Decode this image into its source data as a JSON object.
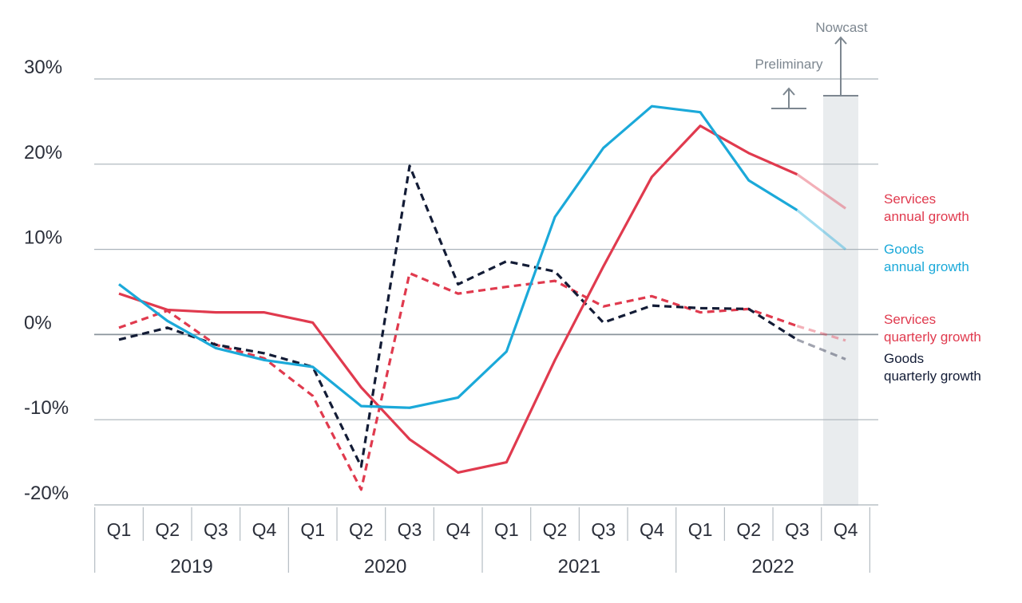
{
  "chart_data": {
    "type": "line",
    "title": "",
    "xlabel": "",
    "ylabel": "",
    "ylim": [
      -20,
      30
    ],
    "yticks": [
      {
        "value": 30,
        "label": "30%"
      },
      {
        "value": 20,
        "label": "20%"
      },
      {
        "value": 10,
        "label": "10%"
      },
      {
        "value": 0,
        "label": "0%"
      },
      {
        "value": -10,
        "label": "-10%"
      },
      {
        "value": -20,
        "label": "-20%"
      }
    ],
    "quarters": [
      "Q1",
      "Q2",
      "Q3",
      "Q4",
      "Q1",
      "Q2",
      "Q3",
      "Q4",
      "Q1",
      "Q2",
      "Q3",
      "Q4",
      "Q1",
      "Q2",
      "Q3",
      "Q4"
    ],
    "years": [
      "2019",
      "2020",
      "2021",
      "2022"
    ],
    "series": [
      {
        "name": "Services annual growth",
        "legend": [
          "Services",
          "annual growth"
        ],
        "color": "#e03a4e",
        "style": "solid",
        "values": [
          4.8,
          2.9,
          2.6,
          2.6,
          1.4,
          -6.2,
          -12.3,
          -16.2,
          -15.0,
          -3.0,
          8.0,
          18.5,
          24.5,
          21.3,
          18.8,
          14.8
        ]
      },
      {
        "name": "Goods annual growth",
        "legend": [
          "Goods",
          "annual growth"
        ],
        "color": "#1ba9d9",
        "style": "solid",
        "values": [
          5.9,
          1.6,
          -1.6,
          -3.0,
          -3.8,
          -8.4,
          -8.6,
          -7.4,
          -2.0,
          13.8,
          21.9,
          26.8,
          26.1,
          18.1,
          14.6,
          10.0
        ]
      },
      {
        "name": "Services quarterly growth",
        "legend": [
          "Services",
          "quarterly growth"
        ],
        "color": "#e03a4e",
        "style": "dashed",
        "values": [
          0.8,
          2.8,
          -1.2,
          -2.8,
          -7.2,
          -18.2,
          7.2,
          4.8,
          5.6,
          6.3,
          3.3,
          4.5,
          2.6,
          3.0,
          1.0,
          -0.7
        ]
      },
      {
        "name": "Goods quarterly growth",
        "legend": [
          "Goods",
          "quarterly growth"
        ],
        "color": "#131c36",
        "style": "dashed",
        "values": [
          -0.6,
          0.8,
          -1.2,
          -2.2,
          -3.8,
          -15.5,
          19.8,
          5.9,
          8.6,
          7.4,
          1.4,
          3.4,
          3.1,
          3.0,
          -0.6,
          -2.9
        ]
      }
    ],
    "annotations": {
      "nowcast": "Nowcast",
      "preliminary": "Preliminary"
    }
  }
}
